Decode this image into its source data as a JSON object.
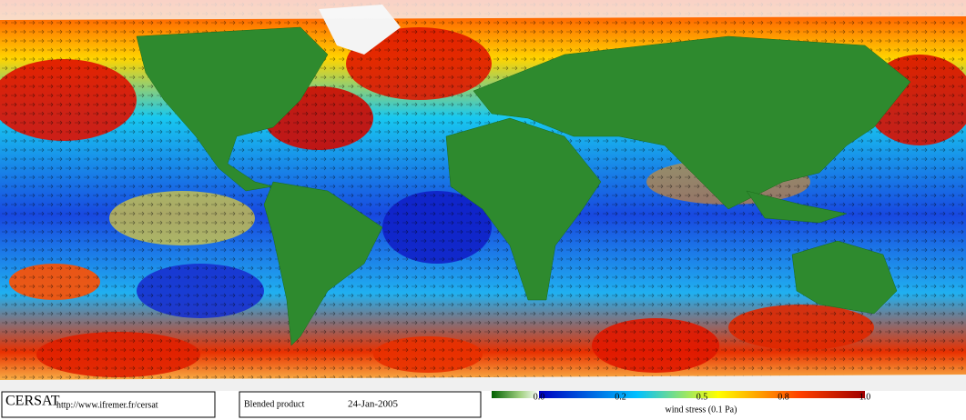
{
  "footer": {
    "logo": "CERSAT",
    "url": "http://www.ifremer.fr/cersat",
    "product": "Blended product",
    "date": "24-Jan-2005"
  },
  "legend": {
    "label": "wind stress (0.1 Pa)",
    "ticks": [
      {
        "value": 0,
        "label": "0.0"
      },
      0.2,
      0.5,
      0.8,
      {
        "value": 1,
        "label": "1.0"
      }
    ]
  }
}
